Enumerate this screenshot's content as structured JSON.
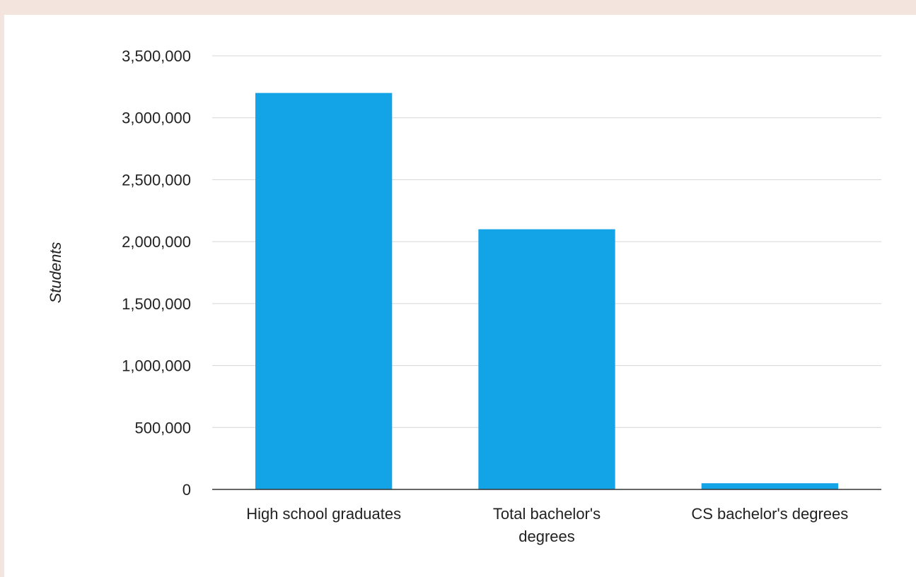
{
  "chart_data": {
    "type": "bar",
    "categories": [
      [
        "High school graduates"
      ],
      [
        "Total bachelor's",
        "degrees"
      ],
      [
        "CS bachelor's degrees"
      ]
    ],
    "values": [
      3200000,
      2100000,
      50000
    ],
    "ylabel": "Students",
    "xlabel": "",
    "ylim": [
      0,
      3500000
    ],
    "yticks": [
      0,
      500000,
      1000000,
      1500000,
      2000000,
      2500000,
      3000000,
      3500000
    ],
    "ytick_labels": [
      "0",
      "500,000",
      "1,000,000",
      "1,500,000",
      "2,000,000",
      "2,500,000",
      "3,000,000",
      "3,500,000"
    ],
    "grid": true,
    "legend": "none",
    "colors": {
      "bar": "#12a4e6",
      "grid": "#d6d6d6",
      "axis": "#333333",
      "page_bg": "#f3e4dd"
    }
  }
}
